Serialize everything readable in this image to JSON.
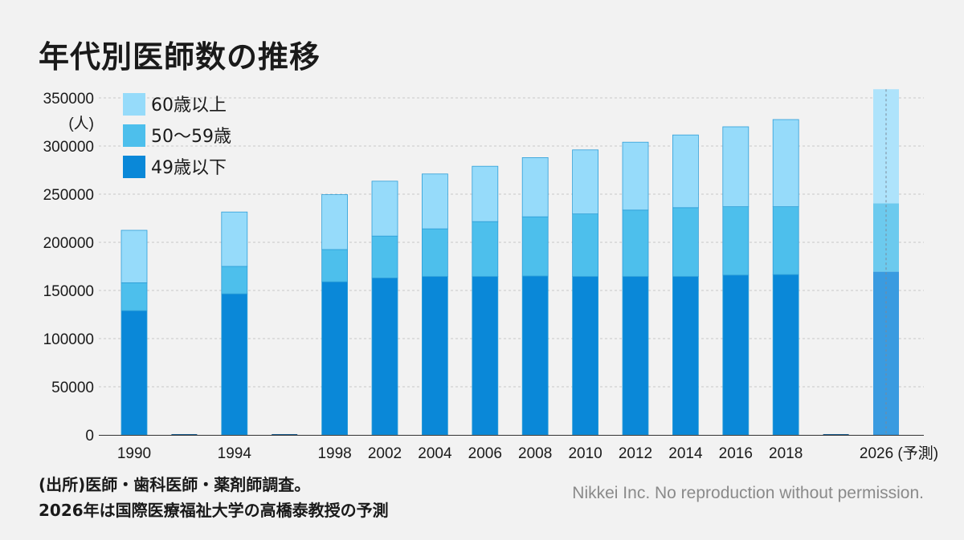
{
  "title": "年代別医師数の推移",
  "notes": [
    "(出所)医師・歯科医師・薬剤師調査。",
    "2026年は国際医療福祉大学の高橋泰教授の予測"
  ],
  "copyright": "Nikkei Inc. No reproduction without permission.",
  "colors": {
    "background": "#f2f2f2",
    "under49": "#0a88d8",
    "age50to59": "#4dbfec",
    "over60": "#96dbfa",
    "projection_under49": "#3a9be0",
    "projection_age50to59": "#6ccaee",
    "projection_over60": "#aee3fb",
    "gridline": "#c8c8c8"
  },
  "chart_data": {
    "type": "bar",
    "stacked": true,
    "title": "年代別医師数の推移",
    "ylabel": "(人)",
    "ylim": [
      0,
      350000
    ],
    "yticks": [
      0,
      50000,
      100000,
      150000,
      200000,
      250000,
      300000,
      350000
    ],
    "grid": true,
    "legend_position": "top-left",
    "categories": [
      "1990",
      "",
      "1994",
      "",
      "1998",
      "2002",
      "2004",
      "2006",
      "2008",
      "2010",
      "2012",
      "2014",
      "2016",
      "2018",
      "",
      "2026 (予測)"
    ],
    "projection_index": 15,
    "series": [
      {
        "name": "49歳以下",
        "color_key": "under49",
        "values": [
          129000,
          0,
          146500,
          0,
          159000,
          163000,
          164500,
          164500,
          165000,
          164500,
          164500,
          164500,
          166000,
          166500,
          0,
          169500
        ]
      },
      {
        "name": "50〜59歳",
        "color_key": "age50to59",
        "values": [
          29000,
          0,
          28500,
          0,
          33500,
          43500,
          49500,
          57000,
          61500,
          65000,
          69000,
          71500,
          71000,
          70500,
          0,
          71000
        ]
      },
      {
        "name": "60歳以上",
        "color_key": "over60",
        "values": [
          54500,
          0,
          56500,
          0,
          57000,
          57000,
          57000,
          57500,
          61500,
          66500,
          70500,
          75500,
          83000,
          90500,
          0,
          118500
        ]
      }
    ],
    "legend_order": [
      "60歳以上",
      "50〜59歳",
      "49歳以下"
    ]
  }
}
